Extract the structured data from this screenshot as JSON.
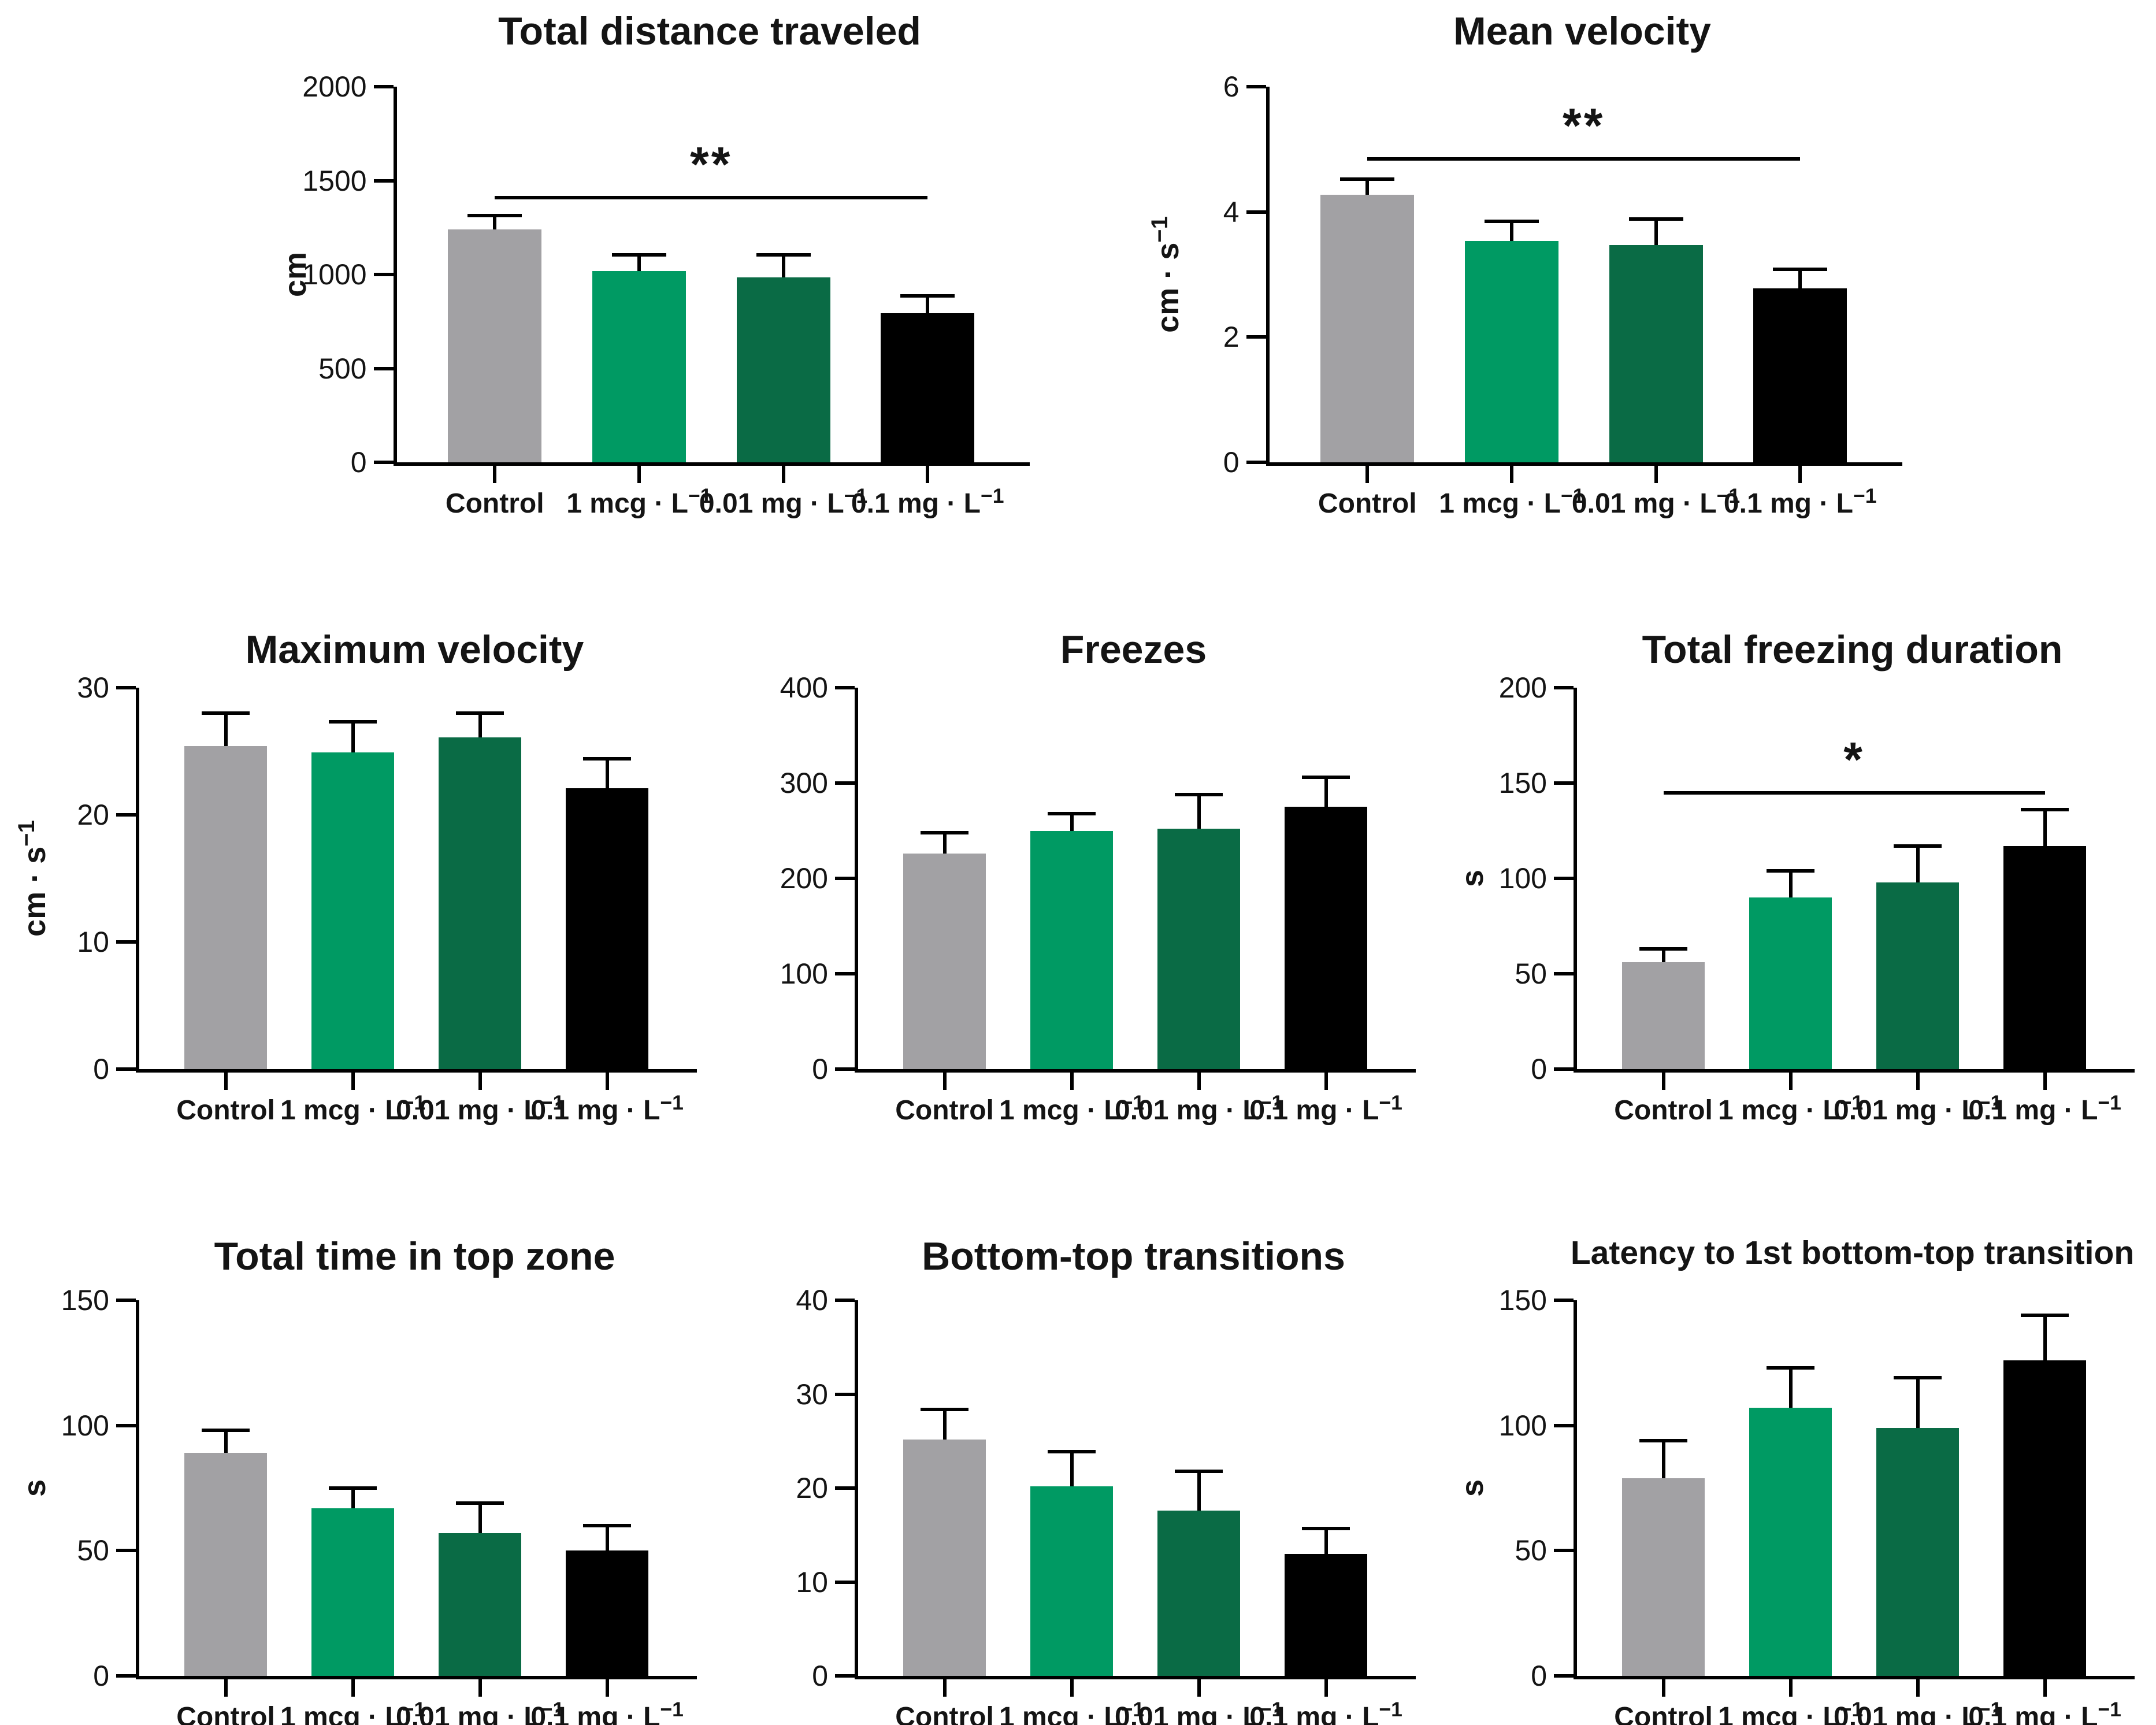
{
  "figure": {
    "background": "#ffffff",
    "axis_color": "#000000",
    "text_color": "#141414",
    "bar_colors": [
      "#a2a1a4",
      "#009a63",
      "#0a6b45",
      "#000000"
    ],
    "group_labels": [
      "Control",
      "1 mcg · L^−1",
      "0.01 mg · L^−1",
      "0.1 mg · L^−1"
    ]
  },
  "chart_data": [
    {
      "type": "bar",
      "title": "Total distance traveled",
      "ylabel": "cm",
      "ylim": [
        0,
        2000
      ],
      "yticks": [
        0,
        500,
        1000,
        1500,
        2000
      ],
      "categories": [
        "Control",
        "1 mcg · L^−1",
        "0.01 mg · L^−1",
        "0.1 mg · L^−1"
      ],
      "values": [
        1240,
        1020,
        985,
        795
      ],
      "errors_upper": [
        75,
        85,
        120,
        90
      ],
      "significance": {
        "label": "**",
        "line_y": 1410,
        "from_index": 0,
        "to_index": 3
      }
    },
    {
      "type": "bar",
      "title": "Mean velocity",
      "ylabel": "cm · s^−1",
      "ylim": [
        0,
        6
      ],
      "yticks": [
        0,
        2,
        4,
        6
      ],
      "categories": [
        "Control",
        "1 mcg · L^−1",
        "0.01 mg · L^−1",
        "0.1 mg · L^−1"
      ],
      "values": [
        4.27,
        3.54,
        3.47,
        2.78
      ],
      "errors_upper": [
        0.25,
        0.31,
        0.42,
        0.3
      ],
      "significance": {
        "label": "**",
        "line_y": 4.85,
        "from_index": 0,
        "to_index": 3
      }
    },
    {
      "type": "bar",
      "title": "Maximum velocity",
      "ylabel": "cm · s^−1",
      "ylim": [
        0,
        30
      ],
      "yticks": [
        0,
        10,
        20,
        30
      ],
      "categories": [
        "Control",
        "1 mcg · L^−1",
        "0.01 mg · L^−1",
        "0.1 mg · L^−1"
      ],
      "values": [
        25.4,
        24.9,
        26.1,
        22.1
      ],
      "errors_upper": [
        2.6,
        2.4,
        1.9,
        2.3
      ],
      "significance": null
    },
    {
      "type": "bar",
      "title": "Freezes",
      "ylabel": "",
      "ylim": [
        0,
        400
      ],
      "yticks": [
        0,
        100,
        200,
        300,
        400
      ],
      "categories": [
        "Control",
        "1 mcg · L^−1",
        "0.01 mg · L^−1",
        "0.1 mg · L^−1"
      ],
      "values": [
        226,
        250,
        252,
        275
      ],
      "errors_upper": [
        22,
        18,
        36,
        31
      ],
      "significance": null
    },
    {
      "type": "bar",
      "title": "Total freezing duration",
      "ylabel": "s",
      "ylim": [
        0,
        200
      ],
      "yticks": [
        0,
        50,
        100,
        150,
        200
      ],
      "categories": [
        "Control",
        "1 mcg · L^−1",
        "0.01 mg · L^−1",
        "0.1 mg · L^−1"
      ],
      "values": [
        56,
        90,
        98,
        117
      ],
      "errors_upper": [
        7,
        14,
        19,
        19
      ],
      "significance": {
        "label": "*",
        "line_y": 145,
        "from_index": 0,
        "to_index": 3
      }
    },
    {
      "type": "bar",
      "title": "Total time in top zone",
      "ylabel": "s",
      "ylim": [
        0,
        150
      ],
      "yticks": [
        0,
        50,
        100,
        150
      ],
      "categories": [
        "Control",
        "1 mcg · L^−1",
        "0.01 mg · L^−1",
        "0.1 mg · L^−1"
      ],
      "values": [
        89,
        67,
        57,
        50
      ],
      "errors_upper": [
        9,
        8,
        12,
        10
      ],
      "significance": null
    },
    {
      "type": "bar",
      "title": "Bottom-top transitions",
      "ylabel": "",
      "ylim": [
        0,
        40
      ],
      "yticks": [
        0,
        10,
        20,
        30,
        40
      ],
      "categories": [
        "Control",
        "1 mcg · L^−1",
        "0.01 mg · L^−1",
        "0.1 mg · L^−1"
      ],
      "values": [
        25.2,
        20.2,
        17.6,
        13.0
      ],
      "errors_upper": [
        3.2,
        3.7,
        4.2,
        2.7
      ],
      "significance": null
    },
    {
      "type": "bar",
      "title": "Latency to 1st bottom-top transition",
      "ylabel": "s",
      "ylim": [
        0,
        150
      ],
      "yticks": [
        0,
        50,
        100,
        150
      ],
      "categories": [
        "Control",
        "1 mcg · L^−1",
        "0.01 mg · L^−1",
        "0.1 mg · L^−1"
      ],
      "values": [
        79,
        107,
        99,
        126
      ],
      "errors_upper": [
        15,
        16,
        20,
        18
      ],
      "significance": null
    }
  ]
}
